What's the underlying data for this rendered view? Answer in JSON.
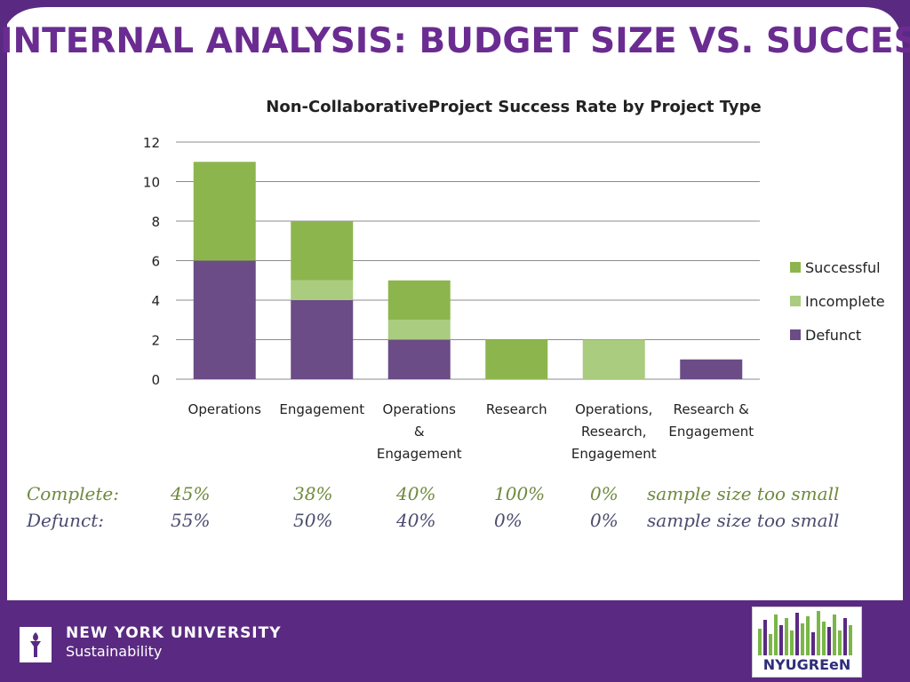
{
  "slide": {
    "title": "INTERNAL ANALYSIS: BUDGET SIZE VS. SUCCESS"
  },
  "chart_data": {
    "type": "bar",
    "stacked": true,
    "title": "Non-CollaborativeProject Success Rate by Project Type",
    "categories": [
      [
        "Operations"
      ],
      [
        "Engagement"
      ],
      [
        "Operations",
        "&",
        "Engagement"
      ],
      [
        "Research"
      ],
      [
        "Operations,",
        "Research,",
        "Engagement"
      ],
      [
        "Research &",
        "Engagement"
      ]
    ],
    "series": [
      {
        "name": "Defunct",
        "values": [
          6,
          4,
          2,
          0,
          0,
          1
        ],
        "color": "#6b4c86"
      },
      {
        "name": "Incomplete",
        "values": [
          0,
          1,
          1,
          0,
          2,
          0
        ],
        "color": "#a9cc7e"
      },
      {
        "name": "Successful",
        "values": [
          5,
          3,
          2,
          2,
          0,
          0
        ],
        "color": "#8db54e"
      }
    ],
    "legend_order": [
      "Successful",
      "Incomplete",
      "Defunct"
    ],
    "ylim": [
      0,
      12
    ],
    "yticks": [
      "0",
      "2",
      "4",
      "6",
      "8",
      "10",
      "12"
    ],
    "grid": true,
    "legend_position": "right"
  },
  "stats": {
    "complete": {
      "label": "Complete:",
      "values": [
        "45%",
        "38%",
        "40%",
        "100%",
        "0%",
        "sample size too small"
      ]
    },
    "defunct": {
      "label": "Defunct:",
      "values": [
        "55%",
        "50%",
        "40%",
        "0%",
        "0%",
        "sample size too small"
      ]
    }
  },
  "footer": {
    "university": "NEW YORK UNIVERSITY",
    "department": "Sustainability",
    "green_logo_text": "NYUGREeN"
  },
  "colors": {
    "purple": "#5a2a82",
    "title_purple": "#6a2c91",
    "successful": "#8db54e",
    "incomplete": "#a9cc7e",
    "defunct": "#6b4c86"
  }
}
